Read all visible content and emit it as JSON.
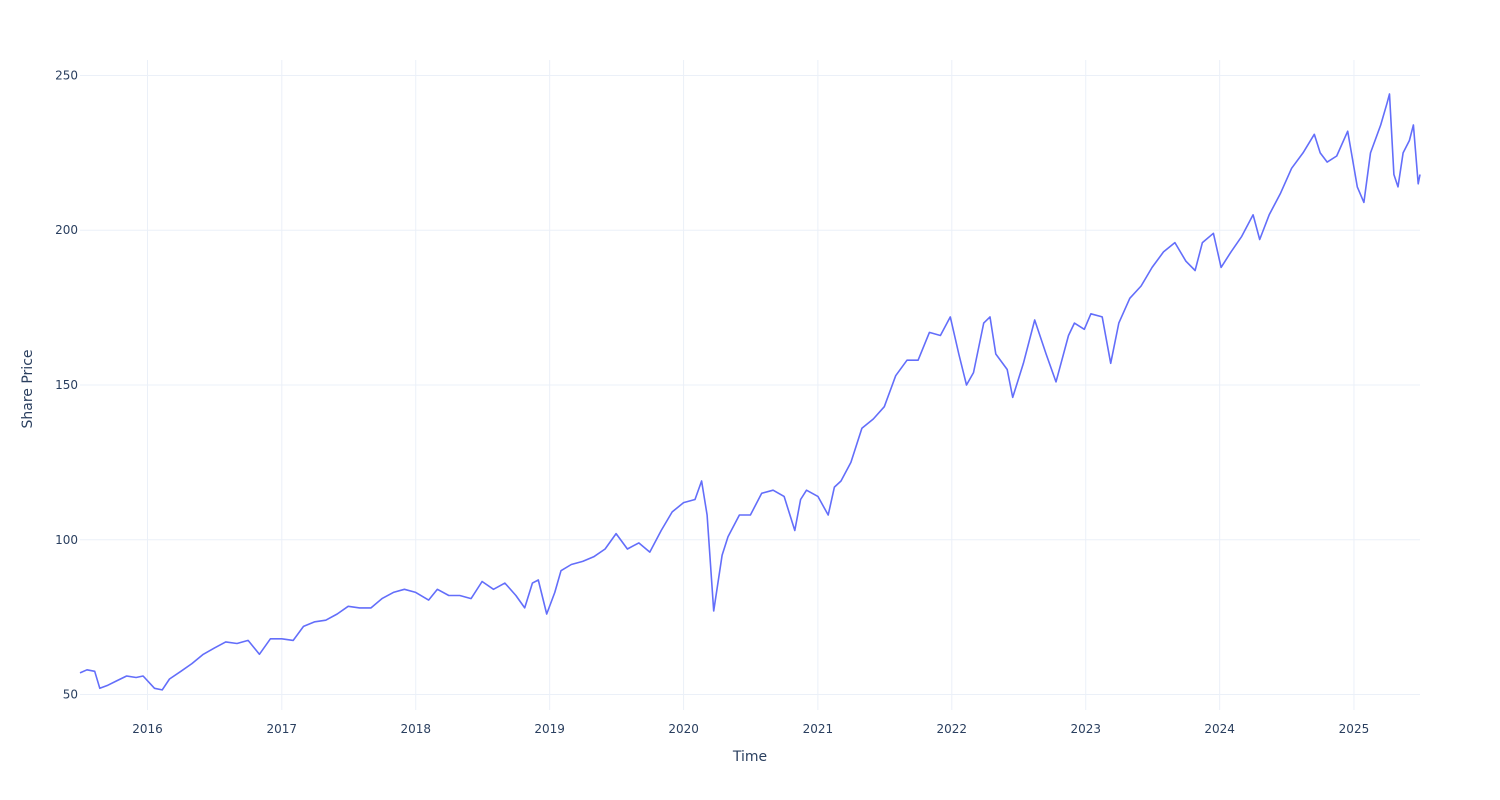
{
  "chart_data": {
    "type": "line",
    "xlabel": "Time",
    "ylabel": "Share Price",
    "x_range": [
      "2015-07-01",
      "2025-06-30"
    ],
    "y_range": [
      45,
      255
    ],
    "x_ticks": [
      "2016",
      "2017",
      "2018",
      "2019",
      "2020",
      "2021",
      "2022",
      "2023",
      "2024",
      "2025"
    ],
    "y_ticks": [
      50,
      100,
      150,
      200,
      250
    ],
    "grid": true,
    "legend": "none",
    "series": [
      {
        "color": "#636efa",
        "points": [
          [
            "2015-07-01",
            57
          ],
          [
            "2015-07-20",
            58
          ],
          [
            "2015-08-10",
            57.5
          ],
          [
            "2015-08-24",
            52
          ],
          [
            "2015-09-15",
            53
          ],
          [
            "2015-10-10",
            54.5
          ],
          [
            "2015-11-05",
            56
          ],
          [
            "2015-12-01",
            55.5
          ],
          [
            "2015-12-20",
            56
          ],
          [
            "2016-01-20",
            52
          ],
          [
            "2016-02-10",
            51.5
          ],
          [
            "2016-03-01",
            55
          ],
          [
            "2016-04-01",
            57.5
          ],
          [
            "2016-05-01",
            60
          ],
          [
            "2016-06-01",
            63
          ],
          [
            "2016-07-01",
            65
          ],
          [
            "2016-08-01",
            67
          ],
          [
            "2016-09-01",
            66.5
          ],
          [
            "2016-10-01",
            67.5
          ],
          [
            "2016-11-01",
            63
          ],
          [
            "2016-12-01",
            68
          ],
          [
            "2017-01-01",
            68
          ],
          [
            "2017-02-01",
            67.5
          ],
          [
            "2017-03-01",
            72
          ],
          [
            "2017-04-01",
            73.5
          ],
          [
            "2017-05-01",
            74
          ],
          [
            "2017-06-01",
            76
          ],
          [
            "2017-07-01",
            78.5
          ],
          [
            "2017-08-01",
            78
          ],
          [
            "2017-09-01",
            78
          ],
          [
            "2017-10-01",
            81
          ],
          [
            "2017-11-01",
            83
          ],
          [
            "2017-12-01",
            84
          ],
          [
            "2018-01-01",
            83
          ],
          [
            "2018-02-05",
            80.5
          ],
          [
            "2018-03-01",
            84
          ],
          [
            "2018-04-01",
            82
          ],
          [
            "2018-05-01",
            82
          ],
          [
            "2018-06-01",
            81
          ],
          [
            "2018-07-01",
            86.5
          ],
          [
            "2018-08-01",
            84
          ],
          [
            "2018-09-01",
            86
          ],
          [
            "2018-10-01",
            82
          ],
          [
            "2018-10-25",
            78
          ],
          [
            "2018-11-15",
            86
          ],
          [
            "2018-12-01",
            87
          ],
          [
            "2018-12-24",
            76
          ],
          [
            "2019-01-15",
            83
          ],
          [
            "2019-02-01",
            90
          ],
          [
            "2019-03-01",
            92
          ],
          [
            "2019-04-01",
            93
          ],
          [
            "2019-05-01",
            94.5
          ],
          [
            "2019-06-01",
            97
          ],
          [
            "2019-07-01",
            102
          ],
          [
            "2019-08-01",
            97
          ],
          [
            "2019-09-01",
            99
          ],
          [
            "2019-10-01",
            96
          ],
          [
            "2019-11-01",
            103
          ],
          [
            "2019-12-01",
            109
          ],
          [
            "2020-01-01",
            112
          ],
          [
            "2020-02-01",
            113
          ],
          [
            "2020-02-19",
            119
          ],
          [
            "2020-03-05",
            108
          ],
          [
            "2020-03-23",
            77
          ],
          [
            "2020-04-15",
            95
          ],
          [
            "2020-05-01",
            101
          ],
          [
            "2020-06-01",
            108
          ],
          [
            "2020-07-01",
            108
          ],
          [
            "2020-08-01",
            115
          ],
          [
            "2020-09-01",
            116
          ],
          [
            "2020-10-01",
            114
          ],
          [
            "2020-10-30",
            103
          ],
          [
            "2020-11-15",
            113
          ],
          [
            "2020-12-01",
            116
          ],
          [
            "2021-01-01",
            114
          ],
          [
            "2021-01-29",
            108
          ],
          [
            "2021-02-15",
            117
          ],
          [
            "2021-03-05",
            119
          ],
          [
            "2021-04-01",
            125
          ],
          [
            "2021-05-01",
            136
          ],
          [
            "2021-06-01",
            139
          ],
          [
            "2021-07-01",
            143
          ],
          [
            "2021-08-01",
            153
          ],
          [
            "2021-09-01",
            158
          ],
          [
            "2021-10-01",
            158
          ],
          [
            "2021-11-01",
            167
          ],
          [
            "2021-12-01",
            166
          ],
          [
            "2021-12-28",
            172
          ],
          [
            "2022-01-20",
            160
          ],
          [
            "2022-02-10",
            150
          ],
          [
            "2022-03-01",
            154
          ],
          [
            "2022-03-29",
            170
          ],
          [
            "2022-04-15",
            172
          ],
          [
            "2022-05-01",
            160
          ],
          [
            "2022-06-01",
            155
          ],
          [
            "2022-06-16",
            146
          ],
          [
            "2022-07-15",
            157
          ],
          [
            "2022-08-15",
            171
          ],
          [
            "2022-09-15",
            160
          ],
          [
            "2022-10-12",
            151
          ],
          [
            "2022-11-15",
            166
          ],
          [
            "2022-12-01",
            170
          ],
          [
            "2022-12-28",
            168
          ],
          [
            "2023-01-15",
            173
          ],
          [
            "2023-02-15",
            172
          ],
          [
            "2023-03-10",
            157
          ],
          [
            "2023-04-01",
            170
          ],
          [
            "2023-05-01",
            178
          ],
          [
            "2023-06-01",
            182
          ],
          [
            "2023-07-01",
            188
          ],
          [
            "2023-08-01",
            193
          ],
          [
            "2023-09-01",
            196
          ],
          [
            "2023-10-01",
            190
          ],
          [
            "2023-10-26",
            187
          ],
          [
            "2023-11-15",
            196
          ],
          [
            "2023-12-15",
            199
          ],
          [
            "2024-01-05",
            188
          ],
          [
            "2024-02-01",
            193
          ],
          [
            "2024-03-01",
            198
          ],
          [
            "2024-04-01",
            205
          ],
          [
            "2024-04-19",
            197
          ],
          [
            "2024-05-15",
            205
          ],
          [
            "2024-06-15",
            212
          ],
          [
            "2024-07-15",
            220
          ],
          [
            "2024-08-15",
            225
          ],
          [
            "2024-09-15",
            231
          ],
          [
            "2024-10-01",
            225
          ],
          [
            "2024-10-20",
            222
          ],
          [
            "2024-11-15",
            224
          ],
          [
            "2024-12-15",
            232
          ],
          [
            "2025-01-10",
            214
          ],
          [
            "2025-01-28",
            209
          ],
          [
            "2025-02-15",
            225
          ],
          [
            "2025-03-15",
            234
          ],
          [
            "2025-04-01",
            241
          ],
          [
            "2025-04-08",
            244
          ],
          [
            "2025-04-20",
            218
          ],
          [
            "2025-05-01",
            214
          ],
          [
            "2025-05-15",
            225
          ],
          [
            "2025-06-01",
            229
          ],
          [
            "2025-06-12",
            234
          ],
          [
            "2025-06-25",
            215
          ],
          [
            "2025-06-30",
            218
          ]
        ]
      }
    ]
  }
}
